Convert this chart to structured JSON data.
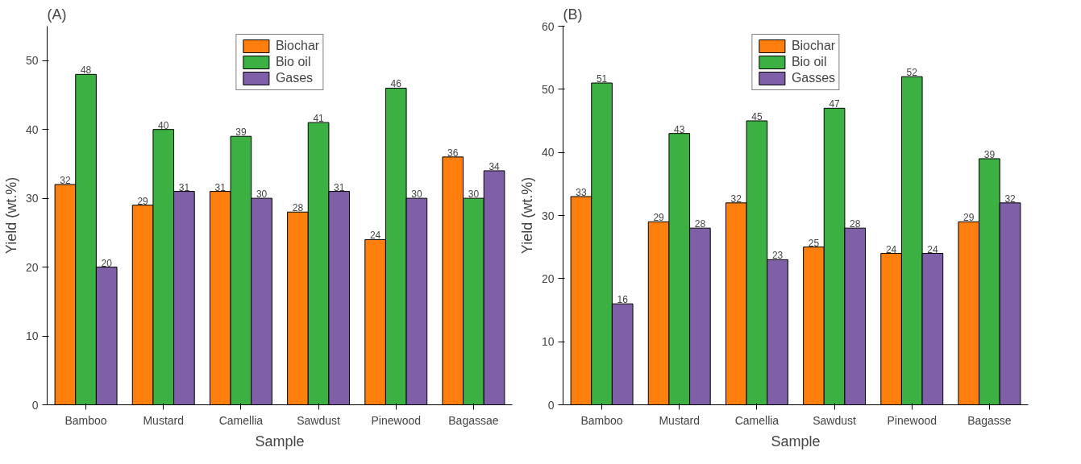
{
  "chart_data": [
    {
      "type": "bar",
      "title": "(A)",
      "xlabel": "Sample",
      "ylabel": "Yield (wt.%)",
      "categories": [
        "Bamboo",
        "Mustard",
        "Camellia",
        "Sawdust",
        "Pinewood",
        "Bagassae"
      ],
      "series": [
        {
          "name": "Biochar",
          "color": "#ff7f0e",
          "values": [
            32,
            29,
            31,
            28,
            24,
            36
          ]
        },
        {
          "name": "Bio oil",
          "color": "#3cb043",
          "values": [
            48,
            40,
            39,
            41,
            46,
            30
          ]
        },
        {
          "name": "Gases",
          "color": "#7f5fa8",
          "values": [
            20,
            31,
            30,
            31,
            30,
            34
          ]
        }
      ],
      "ylim": [
        0,
        55
      ],
      "yticks": [
        0,
        10,
        20,
        30,
        40,
        50
      ],
      "data_labels": true,
      "legend": "top",
      "grid": false
    },
    {
      "type": "bar",
      "title": "(B)",
      "xlabel": "Sample",
      "ylabel": "Yield (wt.%)",
      "categories": [
        "Bamboo",
        "Mustard",
        "Camellia",
        "Sawdust",
        "Pinewood",
        "Bagasse"
      ],
      "series": [
        {
          "name": "Biochar",
          "color": "#ff7f0e",
          "values": [
            33,
            29,
            32,
            25,
            24,
            29
          ]
        },
        {
          "name": "Bio oil",
          "color": "#3cb043",
          "values": [
            51,
            43,
            45,
            47,
            52,
            39
          ]
        },
        {
          "name": "Gasses",
          "color": "#7f5fa8",
          "values": [
            16,
            28,
            23,
            28,
            24,
            32
          ]
        }
      ],
      "ylim": [
        0,
        60
      ],
      "yticks": [
        0,
        10,
        20,
        30,
        40,
        50,
        60
      ],
      "data_labels": true,
      "legend": "top",
      "grid": false
    }
  ]
}
